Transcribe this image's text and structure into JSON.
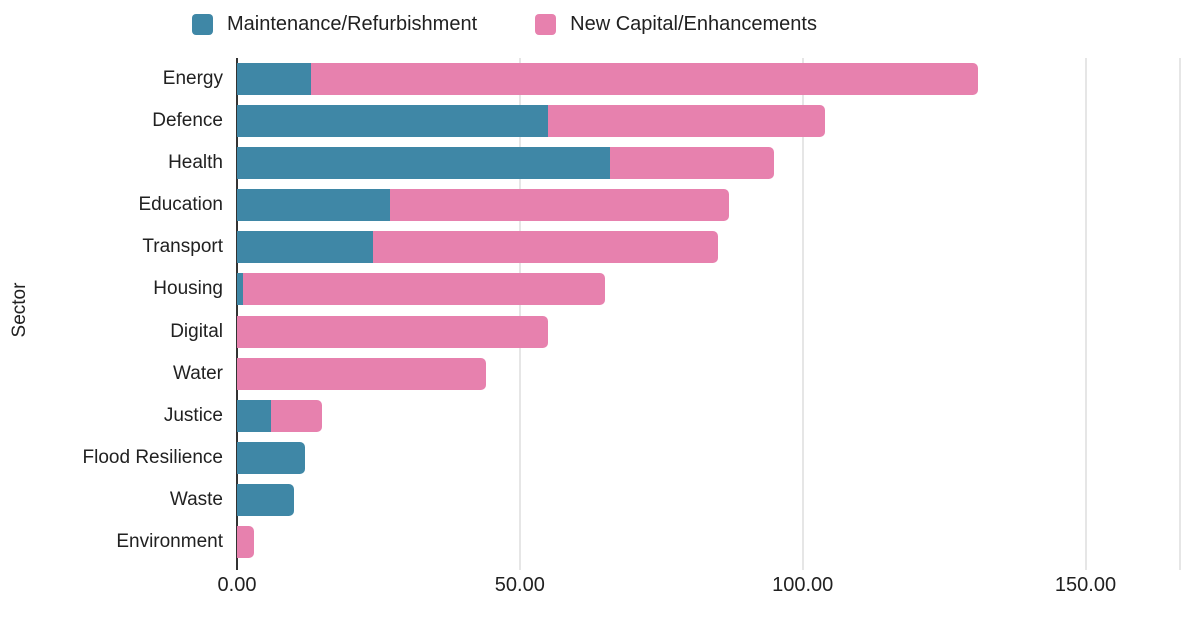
{
  "legend": [
    {
      "label": "Maintenance/Refurbishment",
      "color": "#3f87a6"
    },
    {
      "label": "New Capital/Enhancements",
      "color": "#e781ae"
    }
  ],
  "chart_data": {
    "type": "bar",
    "orientation": "horizontal",
    "stacked": true,
    "title": "",
    "xlabel": "",
    "ylabel": "Sector",
    "categories": [
      "Energy",
      "Defence",
      "Health",
      "Education",
      "Transport",
      "Housing",
      "Digital",
      "Water",
      "Justice",
      "Flood Resilience",
      "Waste",
      "Environment"
    ],
    "series": [
      {
        "name": "Maintenance/Refurbishment",
        "color": "#3f87a6",
        "values": [
          13,
          55,
          66,
          27,
          24,
          1,
          0,
          0,
          6,
          12,
          10,
          0
        ]
      },
      {
        "name": "New Capital/Enhancements",
        "color": "#e781ae",
        "values": [
          118,
          49,
          29,
          60,
          61,
          64,
          55,
          44,
          9,
          0,
          0,
          3
        ]
      }
    ],
    "totals": [
      131,
      104,
      95,
      87,
      85,
      65,
      55,
      44,
      15,
      12,
      10,
      3
    ],
    "x_ticks": [
      "0.00",
      "50.00",
      "100.00",
      "150.00"
    ],
    "x_tick_values": [
      0,
      50,
      100,
      150
    ],
    "xlim": [
      0,
      166.7
    ],
    "grid": true,
    "right_edge_gridline": true,
    "legend_position": "top",
    "axis_color": "#333333",
    "gridline_color": "#cccccc"
  }
}
